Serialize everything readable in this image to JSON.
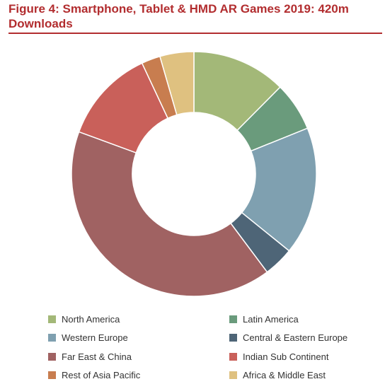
{
  "title": "Figure 4: Smartphone, Tablet & HMD AR Games 2019: 420m Downloads",
  "chart_data": {
    "type": "pie",
    "donut": true,
    "title": "Figure 4: Smartphone, Tablet & HMD AR Games 2019: 420m Downloads",
    "legend_position": "bottom",
    "categories": [
      "North America",
      "Latin America",
      "Western Europe",
      "Central & Eastern Europe",
      "Far East & China",
      "Indian Sub Continent",
      "Rest of Asia Pacific",
      "Africa & Middle East"
    ],
    "values": [
      12.5,
      6.5,
      17,
      4,
      41,
      12.5,
      2.5,
      4.5
    ],
    "colors": [
      "#a3b878",
      "#6a9b7c",
      "#7fa0b0",
      "#4e6577",
      "#a06262",
      "#c9605a",
      "#c87d4f",
      "#dfc180"
    ]
  }
}
